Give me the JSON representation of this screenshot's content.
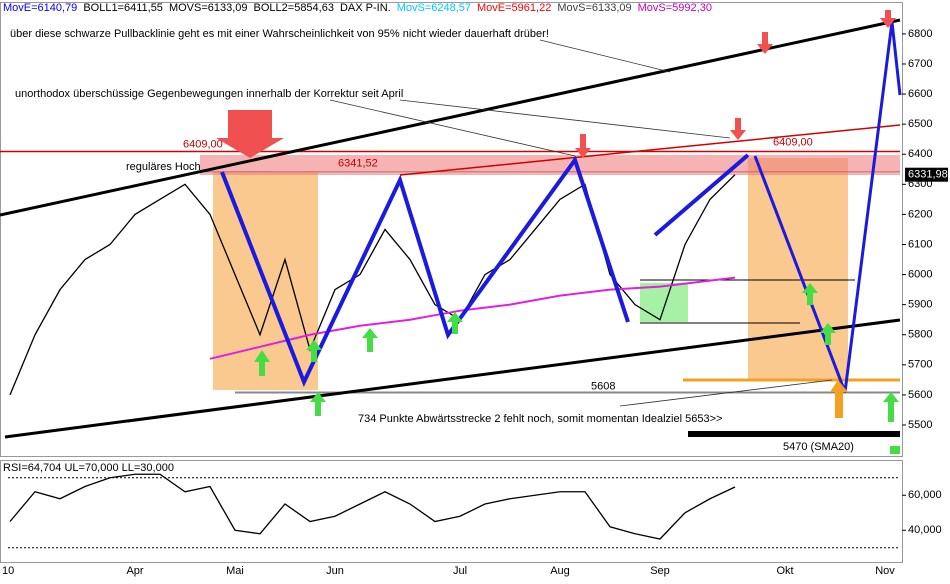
{
  "header": [
    {
      "text": "MovE=6140,79",
      "color": "#0000ff"
    },
    {
      "text": "BOLL1=6411,55",
      "color": "#000000"
    },
    {
      "text": "MOVS=6133,09",
      "color": "#000000"
    },
    {
      "text": "BOLL2=5854,63",
      "color": "#000000"
    },
    {
      "text": "DAX P-IN.",
      "color": "#000000"
    },
    {
      "text": "MovS=6248,57",
      "color": "#00c8ff"
    },
    {
      "text": "MovE=5961,22",
      "color": "#ff0000"
    },
    {
      "text": "MovS=6133,09",
      "color": "#404040"
    },
    {
      "text": "MovS=5992,30",
      "color": "#c000c0"
    }
  ],
  "chart_data": [
    {
      "type": "line",
      "categories": [
        "10",
        null,
        null,
        null,
        null,
        "Apr",
        null,
        null,
        null,
        "Mai",
        null,
        null,
        null,
        "Jun",
        null,
        null,
        null,
        null,
        "Jul",
        null,
        null,
        null,
        "Aug",
        null,
        null,
        null,
        "Sep",
        null,
        null,
        null,
        null,
        "Okt",
        null,
        null,
        null,
        "Nov"
      ],
      "series": [
        {
          "color": "#000000",
          "values": [
            5600,
            5800,
            5950,
            6050,
            6100,
            6200,
            6250,
            6300,
            6200,
            6000,
            5800,
            6050,
            5750,
            5950,
            6000,
            6150,
            6050,
            5900,
            5850,
            6000,
            6050,
            6150,
            6250,
            6300,
            6000,
            5900,
            5850,
            6100,
            6250,
            6331.98,
            null,
            null,
            null,
            null,
            null,
            null
          ],
          "value_labels": [
            null,
            null,
            null,
            null,
            null,
            null,
            null,
            null,
            null,
            null,
            null,
            null,
            null,
            null,
            null,
            null,
            null,
            null,
            null,
            null,
            null,
            null,
            null,
            null,
            null,
            null,
            null,
            null,
            null,
            "6331,98",
            null,
            null,
            null,
            null,
            null,
            null
          ]
        },
        {
          "color": "#e020e0",
          "values": [
            null,
            null,
            null,
            null,
            null,
            null,
            null,
            null,
            5720,
            5740,
            5760,
            5780,
            5800,
            5815,
            5830,
            5840,
            5850,
            5865,
            5880,
            5890,
            5900,
            5915,
            5930,
            5940,
            5950,
            5955,
            5960,
            5970,
            5980,
            5990,
            null,
            null,
            null,
            null,
            null,
            null
          ]
        }
      ],
      "ylim": [
        5397,
        6906
      ],
      "yticks": [
        5500,
        5600,
        5700,
        5800,
        5900,
        6000,
        6100,
        6200,
        6300,
        6400,
        6500,
        6600,
        6700,
        6800
      ],
      "levels": [
        {
          "value": 6409,
          "label": "6409,00"
        },
        {
          "value": 6341.52,
          "label": "6341,52"
        },
        {
          "value": 5608,
          "label": "5608"
        },
        {
          "value": 5470,
          "label": "5470 (SMA20)"
        }
      ],
      "annotations": {
        "pullback": "über diese schwarze Pullbacklinie geht es mit einer Wahrscheinlichkeit von 95% nicht wieder dauerhaft drüber!",
        "excess": "unorthodox überschüssige Gegenbewegungen innerhalb der Korrektur seit April",
        "high": "reguläres  Hoch",
        "target": "734 Punkte Abwärtsstrecke 2 fehlt noch, somit momentan Idealziel 5653>>"
      }
    },
    {
      "type": "line",
      "title": "RSI=64,704 UL=70,000 LL=30,000",
      "series": [
        {
          "color": "#000000",
          "values": [
            45,
            62,
            58,
            65,
            70,
            72,
            72,
            62,
            65,
            40,
            38,
            55,
            45,
            48,
            55,
            62,
            55,
            45,
            48,
            55,
            58,
            60,
            62,
            62,
            42,
            38,
            35,
            50,
            58,
            64.7,
            null,
            null,
            null,
            null,
            null,
            null
          ]
        }
      ],
      "limits": [
        70,
        30
      ],
      "ylim": [
        23,
        79
      ],
      "yticks": [
        {
          "value": 40,
          "label": "40,000"
        },
        {
          "value": 60,
          "label": "60,000"
        }
      ]
    }
  ]
}
